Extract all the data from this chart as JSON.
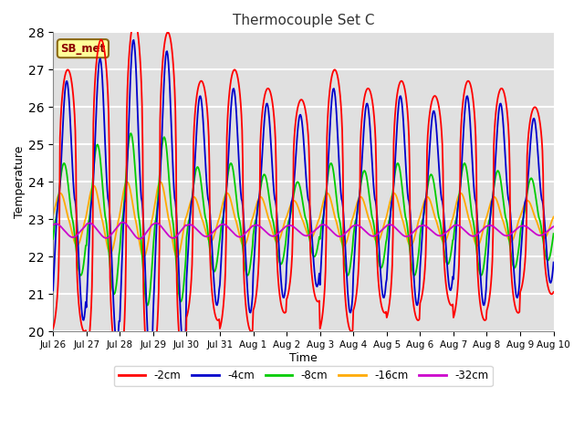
{
  "title": "Thermocouple Set C",
  "xlabel": "Time",
  "ylabel": "Temperature",
  "ylim": [
    20.0,
    28.0
  ],
  "yticks": [
    20.0,
    21.0,
    22.0,
    23.0,
    24.0,
    25.0,
    26.0,
    27.0,
    28.0
  ],
  "colors": {
    "-2cm": "#ff0000",
    "-4cm": "#0000cc",
    "-8cm": "#00cc00",
    "-16cm": "#ffaa00",
    "-32cm": "#cc00cc"
  },
  "legend_label": "SB_met",
  "bg_color": "#e0e0e0",
  "x_tick_labels": [
    "Jul 26",
    "Jul 27",
    "Jul 28",
    "Jul 29",
    "Jul 30",
    "Jul 31",
    "Aug 1",
    "Aug 2",
    "Aug 3",
    "Aug 4",
    "Aug 5",
    "Aug 6",
    "Aug 7",
    "Aug 8",
    "Aug 9",
    "Aug 10"
  ],
  "amp_2cm_daily": [
    3.5,
    4.3,
    4.8,
    4.5,
    3.2,
    3.5,
    3.0,
    2.7,
    3.5,
    3.0,
    3.2,
    2.8,
    3.2,
    3.0,
    2.5,
    2.0
  ],
  "amp_4cm_daily": [
    3.2,
    3.8,
    4.3,
    4.0,
    2.8,
    3.0,
    2.6,
    2.3,
    3.0,
    2.6,
    2.8,
    2.4,
    2.8,
    2.6,
    2.2,
    1.8
  ],
  "amp_8cm_daily": [
    1.5,
    2.0,
    2.3,
    2.2,
    1.4,
    1.5,
    1.2,
    1.0,
    1.5,
    1.3,
    1.5,
    1.2,
    1.5,
    1.3,
    1.1,
    0.9
  ],
  "amp_16cm_daily": [
    0.7,
    0.9,
    1.0,
    1.0,
    0.6,
    0.7,
    0.6,
    0.5,
    0.7,
    0.6,
    0.7,
    0.6,
    0.7,
    0.6,
    0.5,
    0.4
  ],
  "amp_32cm_daily": [
    0.18,
    0.2,
    0.22,
    0.2,
    0.16,
    0.17,
    0.15,
    0.14,
    0.16,
    0.15,
    0.16,
    0.14,
    0.15,
    0.14,
    0.13,
    0.12
  ],
  "mean_2cm": 23.5,
  "mean_4cm": 23.5,
  "mean_8cm": 23.0,
  "mean_16cm": 23.0,
  "mean_32cm": 22.7,
  "phase_2cm": -1.2,
  "phase_4cm": -1.0,
  "phase_8cm": -0.5,
  "phase_16cm": 0.2,
  "phase_32cm": 1.0,
  "sharpness": 3.0
}
